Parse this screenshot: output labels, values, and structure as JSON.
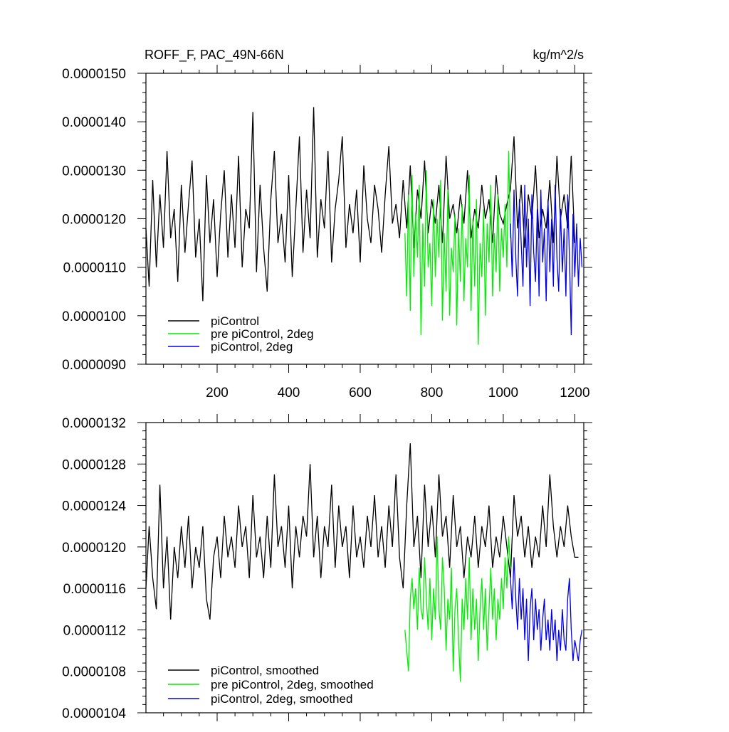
{
  "chart_data": [
    {
      "type": "line",
      "title": "ROFF_F, PAC_49N-66N",
      "units": "kg/m^2/s",
      "xlim": [
        1,
        1225
      ],
      "ylim": [
        9e-06,
        1.5e-05
      ],
      "x_ticks": [
        200,
        400,
        600,
        800,
        1000,
        1200
      ],
      "x_tick_labels": [
        "200",
        "400",
        "600",
        "800",
        "1000",
        "1200"
      ],
      "y_ticks": [
        9e-06,
        1e-05,
        1.1e-05,
        1.2e-05,
        1.3e-05,
        1.4e-05,
        1.5e-05
      ],
      "y_tick_labels": [
        "0.0000090",
        "0.0000100",
        "0.0000110",
        "0.0000120",
        "0.0000130",
        "0.0000140",
        "0.0000150"
      ],
      "legend_position": "bottom-left",
      "series": [
        {
          "name": "piControl",
          "color": "#000000",
          "x": [
            1,
            10,
            20,
            30,
            40,
            50,
            60,
            70,
            80,
            90,
            100,
            110,
            120,
            130,
            140,
            150,
            160,
            170,
            180,
            190,
            200,
            210,
            220,
            230,
            240,
            250,
            260,
            270,
            280,
            290,
            300,
            310,
            320,
            330,
            340,
            350,
            360,
            370,
            380,
            390,
            400,
            410,
            420,
            430,
            440,
            450,
            460,
            470,
            480,
            490,
            500,
            510,
            520,
            530,
            540,
            550,
            560,
            570,
            580,
            590,
            600,
            610,
            620,
            630,
            640,
            650,
            660,
            670,
            680,
            690,
            700,
            710,
            720,
            730,
            740,
            750,
            760,
            770,
            780,
            790,
            800,
            810,
            820,
            830,
            840,
            850,
            860,
            870,
            880,
            890,
            900,
            910,
            920,
            930,
            940,
            950,
            960,
            970,
            980,
            990,
            1000,
            1010,
            1020,
            1030,
            1040,
            1050,
            1060,
            1070,
            1080,
            1090,
            1100,
            1110,
            1120,
            1130,
            1140,
            1150,
            1160,
            1170,
            1180,
            1190,
            1200
          ],
          "y": [
            1.18e-05,
            1.06e-05,
            1.28e-05,
            1.1e-05,
            1.25e-05,
            1.14e-05,
            1.34e-05,
            1.16e-05,
            1.22e-05,
            1.07e-05,
            1.27e-05,
            1.13e-05,
            1.23e-05,
            1.32e-05,
            1.12e-05,
            1.2e-05,
            1.03e-05,
            1.29e-05,
            1.15e-05,
            1.24e-05,
            1.08e-05,
            1.21e-05,
            1.3e-05,
            1.12e-05,
            1.25e-05,
            1.14e-05,
            1.33e-05,
            1.1e-05,
            1.22e-05,
            1.18e-05,
            1.42e-05,
            1.09e-05,
            1.27e-05,
            1.14e-05,
            1.05e-05,
            1.24e-05,
            1.34e-05,
            1.15e-05,
            1.21e-05,
            1.11e-05,
            1.29e-05,
            1.08e-05,
            1.22e-05,
            1.37e-05,
            1.13e-05,
            1.26e-05,
            1.16e-05,
            1.43e-05,
            1.12e-05,
            1.24e-05,
            1.18e-05,
            1.34e-05,
            1.11e-05,
            1.22e-05,
            1.28e-05,
            1.37e-05,
            1.14e-05,
            1.23e-05,
            1.17e-05,
            1.26e-05,
            1.11e-05,
            1.31e-05,
            1.2e-05,
            1.15e-05,
            1.27e-05,
            1.22e-05,
            1.13e-05,
            1.25e-05,
            1.35e-05,
            1.19e-05,
            1.23e-05,
            1.16e-05,
            1.28e-05,
            1.18e-05,
            1.31e-05,
            1.14e-05,
            1.26e-05,
            1.2e-05,
            1.32e-05,
            1.17e-05,
            1.24e-05,
            1.19e-05,
            1.27e-05,
            1.15e-05,
            1.33e-05,
            1.2e-05,
            1.23e-05,
            1.17e-05,
            1.25e-05,
            1.19e-05,
            1.3e-05,
            1.16e-05,
            1.22e-05,
            1.18e-05,
            1.27e-05,
            1.2e-05,
            1.24e-05,
            1.15e-05,
            1.29e-05,
            1.21e-05,
            1.19e-05,
            1.23e-05,
            1.26e-05,
            1.37e-05,
            1.18e-05,
            1.27e-05,
            1.14e-05,
            1.25e-05,
            1.2e-05,
            1.31e-05,
            1.16e-05,
            1.22e-05,
            1.18e-05,
            1.28e-05,
            1.15e-05,
            1.33e-05,
            1.2e-05,
            1.25e-05,
            1.18e-05,
            1.33e-05,
            1.15e-05
          ]
        },
        {
          "name": "pre piControl, 2deg",
          "color": "#00ee00",
          "x": [
            725,
            730,
            735,
            740,
            745,
            750,
            755,
            760,
            765,
            770,
            775,
            780,
            785,
            790,
            795,
            800,
            805,
            810,
            815,
            820,
            825,
            830,
            835,
            840,
            845,
            850,
            855,
            860,
            865,
            870,
            875,
            880,
            885,
            890,
            895,
            900,
            905,
            910,
            915,
            920,
            925,
            930,
            935,
            940,
            945,
            950,
            955,
            960,
            965,
            970,
            975,
            980,
            985,
            990,
            995,
            1000,
            1005,
            1010,
            1015,
            1020
          ],
          "y": [
            1.17e-05,
            1.04e-05,
            1.25e-05,
            1.01e-05,
            1.29e-05,
            1.08e-05,
            1.21e-05,
            1.12e-05,
            1.27e-05,
            9.6e-06,
            1.19e-05,
            1.06e-05,
            1.3e-05,
            1.1e-05,
            1.15e-05,
            1.02e-05,
            1.24e-05,
            1.08e-05,
            1.2e-05,
            1.12e-05,
            1.28e-05,
            9.9e-06,
            1.17e-05,
            1.05e-05,
            1.26e-05,
            1e-05,
            1.14e-05,
            1.09e-05,
            1.21e-05,
            9.8e-06,
            1.18e-05,
            1.07e-05,
            1.23e-05,
            1.03e-05,
            1.16e-05,
            1.1e-05,
            1.29e-05,
            1.01e-05,
            1.2e-05,
            1.06e-05,
            1.24e-05,
            9.4e-06,
            1.15e-05,
            1.08e-05,
            1.22e-05,
            1e-05,
            1.19e-05,
            1.11e-05,
            1.27e-05,
            1.04e-05,
            1.17e-05,
            1.09e-05,
            1.25e-05,
            1.05e-05,
            1.18e-05,
            1.12e-05,
            1.23e-05,
            1.1e-05,
            1.34e-05,
            1.16e-05
          ]
        },
        {
          "name": "piControl, 2deg",
          "color": "#0000ee",
          "x": [
            1020,
            1025,
            1030,
            1035,
            1040,
            1045,
            1050,
            1055,
            1060,
            1065,
            1070,
            1075,
            1080,
            1085,
            1090,
            1095,
            1100,
            1105,
            1110,
            1115,
            1120,
            1125,
            1130,
            1135,
            1140,
            1145,
            1150,
            1155,
            1160,
            1165,
            1170,
            1175,
            1180,
            1185,
            1190,
            1195,
            1200,
            1205,
            1210,
            1215,
            1220
          ],
          "y": [
            1.19e-05,
            1.08e-05,
            1.26e-05,
            1.12e-05,
            1.04e-05,
            1.24e-05,
            1.15e-05,
            1.06e-05,
            1.27e-05,
            1.1e-05,
            1.2e-05,
            1.02e-05,
            1.25e-05,
            1.13e-05,
            1.07e-05,
            1.22e-05,
            1.04e-05,
            1.26e-05,
            1.11e-05,
            1.18e-05,
            1.03e-05,
            1.24e-05,
            1.09e-05,
            1.2e-05,
            1.06e-05,
            1.27e-05,
            1.12e-05,
            1.05e-05,
            1.22e-05,
            1.09e-05,
            1.18e-05,
            1.04e-05,
            1.25e-05,
            1.12e-05,
            9.6e-06,
            1.21e-05,
            1.08e-05,
            1.19e-05,
            1.06e-05,
            1.16e-05,
            1.1e-05
          ]
        }
      ]
    },
    {
      "type": "line",
      "xlim": [
        1,
        1225
      ],
      "ylim": [
        1.04e-05,
        1.32e-05
      ],
      "x_ticks": [
        200,
        400,
        600,
        800,
        1000,
        1200
      ],
      "y_ticks": [
        1.04e-05,
        1.08e-05,
        1.12e-05,
        1.16e-05,
        1.2e-05,
        1.24e-05,
        1.28e-05,
        1.32e-05
      ],
      "y_tick_labels": [
        "0.0000104",
        "0.0000108",
        "0.0000112",
        "0.0000116",
        "0.0000120",
        "0.0000124",
        "0.0000128",
        "0.0000132"
      ],
      "legend_position": "bottom-left",
      "series": [
        {
          "name": "piControl, smoothed",
          "color": "#000000",
          "x": [
            1,
            10,
            20,
            30,
            40,
            50,
            60,
            70,
            80,
            90,
            100,
            110,
            120,
            130,
            140,
            150,
            160,
            170,
            180,
            190,
            200,
            210,
            220,
            230,
            240,
            250,
            260,
            270,
            280,
            290,
            300,
            310,
            320,
            330,
            340,
            350,
            360,
            370,
            380,
            390,
            400,
            410,
            420,
            430,
            440,
            450,
            460,
            470,
            480,
            490,
            500,
            510,
            520,
            530,
            540,
            550,
            560,
            570,
            580,
            590,
            600,
            610,
            620,
            630,
            640,
            650,
            660,
            670,
            680,
            690,
            700,
            710,
            720,
            730,
            740,
            750,
            760,
            770,
            780,
            790,
            800,
            810,
            820,
            830,
            840,
            850,
            860,
            870,
            880,
            890,
            900,
            910,
            920,
            930,
            940,
            950,
            960,
            970,
            980,
            990,
            1000,
            1010,
            1020,
            1030,
            1040,
            1050,
            1060,
            1070,
            1080,
            1090,
            1100,
            1110,
            1120,
            1130,
            1140,
            1150,
            1160,
            1170,
            1180,
            1190,
            1200,
            1210
          ],
          "y": [
            1.16e-05,
            1.22e-05,
            1.17e-05,
            1.14e-05,
            1.26e-05,
            1.16e-05,
            1.21e-05,
            1.13e-05,
            1.2e-05,
            1.17e-05,
            1.22e-05,
            1.18e-05,
            1.23e-05,
            1.16e-05,
            1.2e-05,
            1.18e-05,
            1.22e-05,
            1.15e-05,
            1.13e-05,
            1.19e-05,
            1.21e-05,
            1.17e-05,
            1.23e-05,
            1.19e-05,
            1.21e-05,
            1.18e-05,
            1.24e-05,
            1.2e-05,
            1.22e-05,
            1.17e-05,
            1.25e-05,
            1.19e-05,
            1.21e-05,
            1.17e-05,
            1.23e-05,
            1.18e-05,
            1.27e-05,
            1.2e-05,
            1.22e-05,
            1.18e-05,
            1.24e-05,
            1.16e-05,
            1.22e-05,
            1.19e-05,
            1.23e-05,
            1.21e-05,
            1.28e-05,
            1.19e-05,
            1.23e-05,
            1.17e-05,
            1.22e-05,
            1.2e-05,
            1.26e-05,
            1.18e-05,
            1.24e-05,
            1.2e-05,
            1.22e-05,
            1.17e-05,
            1.24e-05,
            1.19e-05,
            1.21e-05,
            1.18e-05,
            1.23e-05,
            1.2e-05,
            1.25e-05,
            1.19e-05,
            1.22e-05,
            1.18e-05,
            1.24e-05,
            1.2e-05,
            1.27e-05,
            1.19e-05,
            1.16e-05,
            1.24e-05,
            1.3e-05,
            1.2e-05,
            1.23e-05,
            1.17e-05,
            1.26e-05,
            1.2e-05,
            1.24e-05,
            1.19e-05,
            1.27e-05,
            1.21e-05,
            1.23e-05,
            1.18e-05,
            1.25e-05,
            1.2e-05,
            1.22e-05,
            1.17e-05,
            1.21e-05,
            1.19e-05,
            1.23e-05,
            1.18e-05,
            1.22e-05,
            1.2e-05,
            1.24e-05,
            1.18e-05,
            1.21e-05,
            1.19e-05,
            1.23e-05,
            1.2e-05,
            1.17e-05,
            1.25e-05,
            1.21e-05,
            1.23e-05,
            1.19e-05,
            1.22e-05,
            1.18e-05,
            1.21e-05,
            1.19e-05,
            1.24e-05,
            1.2e-05,
            1.27e-05,
            1.22e-05,
            1.19e-05,
            1.22e-05,
            1.2e-05,
            1.24e-05,
            1.21e-05,
            1.19e-05,
            1.19e-05
          ]
        },
        {
          "name": "pre piControl, 2deg, smoothed",
          "color": "#00ee00",
          "x": [
            725,
            730,
            735,
            740,
            745,
            750,
            755,
            760,
            765,
            770,
            775,
            780,
            785,
            790,
            795,
            800,
            805,
            810,
            815,
            820,
            825,
            830,
            835,
            840,
            845,
            850,
            855,
            860,
            865,
            870,
            875,
            880,
            885,
            890,
            895,
            900,
            905,
            910,
            915,
            920,
            925,
            930,
            935,
            940,
            945,
            950,
            955,
            960,
            965,
            970,
            975,
            980,
            985,
            990,
            995,
            1000,
            1005,
            1010,
            1015,
            1020
          ],
          "y": [
            1.12e-05,
            1.1e-05,
            1.08e-05,
            1.15e-05,
            1.17e-05,
            1.14e-05,
            1.16e-05,
            1.12e-05,
            1.18e-05,
            1.14e-05,
            1.13e-05,
            1.19e-05,
            1.15e-05,
            1.12e-05,
            1.17e-05,
            1.11e-05,
            1.16e-05,
            1.13e-05,
            1.21e-05,
            1.14e-05,
            1.12e-05,
            1.19e-05,
            1.16e-05,
            1.1e-05,
            1.15e-05,
            1.13e-05,
            1.18e-05,
            1.08e-05,
            1.14e-05,
            1.16e-05,
            1.11e-05,
            1.07e-05,
            1.15e-05,
            1.12e-05,
            1.17e-05,
            1.13e-05,
            1.19e-05,
            1.11e-05,
            1.16e-05,
            1.12e-05,
            1.15e-05,
            1.09e-05,
            1.14e-05,
            1.17e-05,
            1.12e-05,
            1.16e-05,
            1.1e-05,
            1.14e-05,
            1.18e-05,
            1.13e-05,
            1.16e-05,
            1.11e-05,
            1.15e-05,
            1.13e-05,
            1.17e-05,
            1.14e-05,
            1.19e-05,
            1.16e-05,
            1.21e-05,
            1.18e-05
          ]
        },
        {
          "name": "piControl, 2deg, smoothed",
          "color": "#0000ee",
          "x": [
            1020,
            1025,
            1030,
            1035,
            1040,
            1045,
            1050,
            1055,
            1060,
            1065,
            1070,
            1075,
            1080,
            1085,
            1090,
            1095,
            1100,
            1105,
            1110,
            1115,
            1120,
            1125,
            1130,
            1135,
            1140,
            1145,
            1150,
            1155,
            1160,
            1165,
            1170,
            1175,
            1180,
            1185,
            1190,
            1195,
            1200,
            1205,
            1210,
            1215,
            1220
          ],
          "y": [
            1.17e-05,
            1.14e-05,
            1.19e-05,
            1.15e-05,
            1.12e-05,
            1.17e-05,
            1.13e-05,
            1.16e-05,
            1.11e-05,
            1.15e-05,
            1.09e-05,
            1.14e-05,
            1.16e-05,
            1.11e-05,
            1.15e-05,
            1.12e-05,
            1.14e-05,
            1.1e-05,
            1.13e-05,
            1.15e-05,
            1.11e-05,
            1.13e-05,
            1.1e-05,
            1.14e-05,
            1.11e-05,
            1.13e-05,
            1.09e-05,
            1.12e-05,
            1.1e-05,
            1.14e-05,
            1.11e-05,
            1.1e-05,
            1.15e-05,
            1.17e-05,
            1.12e-05,
            1.09e-05,
            1.11e-05,
            1.1e-05,
            1.09e-05,
            1.11e-05,
            1.12e-05
          ]
        }
      ]
    }
  ]
}
